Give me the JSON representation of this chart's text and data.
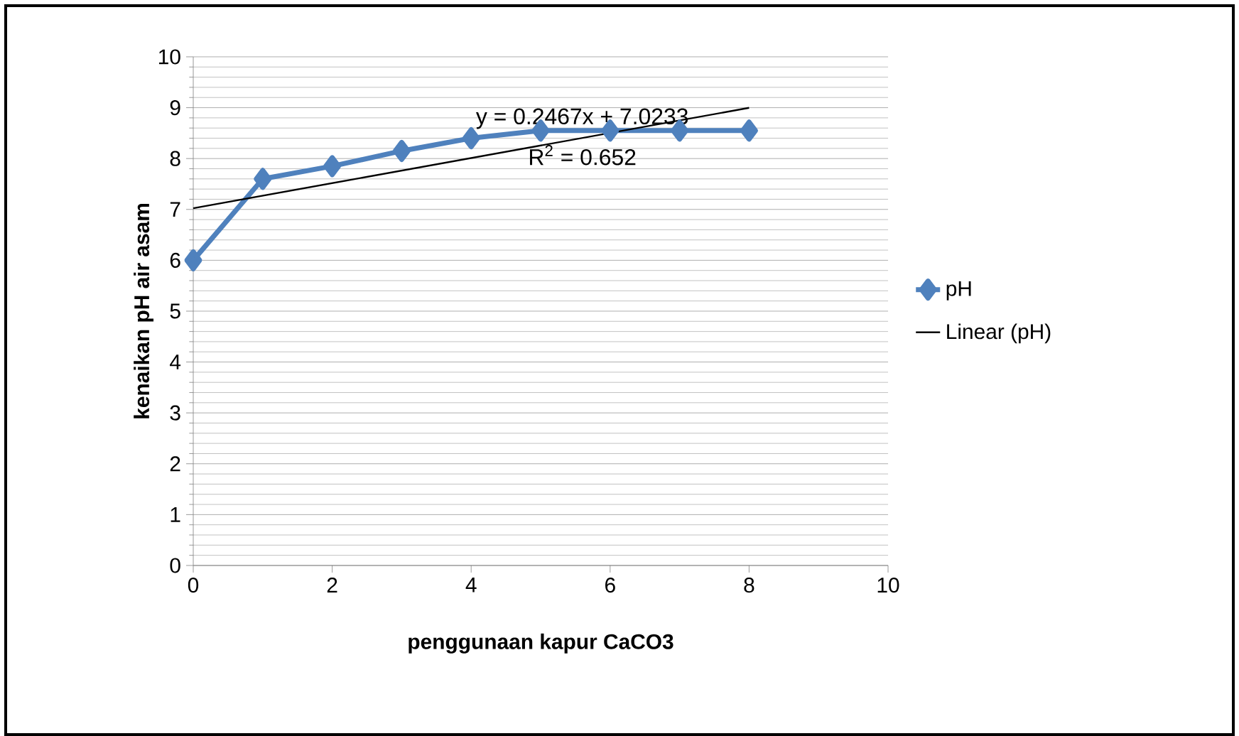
{
  "chart_data": {
    "type": "line",
    "xlabel": "penggunaan kapur CaCO3",
    "ylabel": "kenaikan pH air asam",
    "x": [
      0,
      1,
      2,
      3,
      4,
      5,
      6,
      7,
      8
    ],
    "series": [
      {
        "name": "pH",
        "color": "#4f81bd",
        "values": [
          6,
          7.6,
          7.85,
          8.15,
          8.4,
          8.55,
          8.55,
          8.55,
          8.55
        ],
        "marker": "diamond"
      },
      {
        "name": "Linear (pH)",
        "type": "line",
        "color": "#000000",
        "x": [
          0,
          8
        ],
        "values": [
          7.0233,
          8.997
        ],
        "marker": "none"
      }
    ],
    "xlim": [
      0,
      10
    ],
    "xticks": [
      0,
      2,
      4,
      6,
      8,
      10
    ],
    "ylim": [
      0,
      10
    ],
    "yticks": [
      0,
      1,
      2,
      3,
      4,
      5,
      6,
      7,
      8,
      9,
      10
    ],
    "grid": "y",
    "legend": "right",
    "annotations": [
      "y = 0.2467x + 7.0233",
      "R$^{2}$ = 0.652"
    ]
  }
}
